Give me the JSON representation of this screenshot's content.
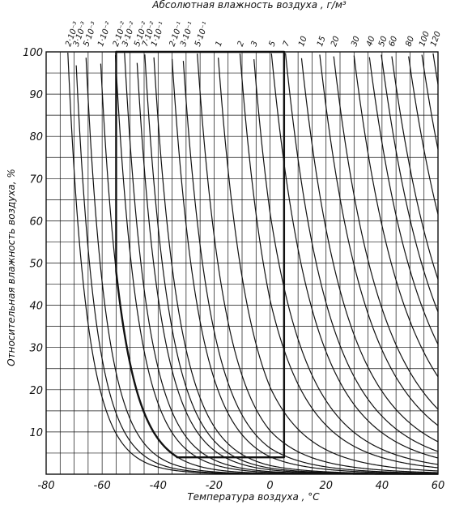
{
  "chart_data": {
    "type": "line",
    "title": "Абсолютная влажность воздуха , г/м³",
    "xlabel": "Температура воздуха , °C",
    "ylabel": "Относительная влажность воздуха, %",
    "xlim": [
      -80,
      60
    ],
    "ylim": [
      0,
      100
    ],
    "x_ticks": [
      {
        "value": -80,
        "label": "-80"
      },
      {
        "value": -60,
        "label": "-60"
      },
      {
        "value": -40,
        "label": "-40"
      },
      {
        "value": -20,
        "label": "-20"
      },
      {
        "value": 0,
        "label": "0"
      },
      {
        "value": 20,
        "label": "20"
      },
      {
        "value": 40,
        "label": "40"
      },
      {
        "value": 60,
        "label": "60"
      }
    ],
    "y_ticks": [
      {
        "value": 10,
        "label": "10"
      },
      {
        "value": 20,
        "label": "20"
      },
      {
        "value": 30,
        "label": "30"
      },
      {
        "value": 40,
        "label": "40"
      },
      {
        "value": 50,
        "label": "50"
      },
      {
        "value": 60,
        "label": "60"
      },
      {
        "value": 70,
        "label": "70"
      },
      {
        "value": 80,
        "label": "80"
      },
      {
        "value": 90,
        "label": "90"
      },
      {
        "value": 100,
        "label": "100"
      }
    ],
    "grid": true,
    "curve_labels": [
      {
        "label": "2·10⁻³",
        "value": 0.002
      },
      {
        "label": "3·10⁻³",
        "value": 0.003
      },
      {
        "label": "5·10⁻³",
        "value": 0.005
      },
      {
        "label": "1·10⁻²",
        "value": 0.01
      },
      {
        "label": "2·10⁻²",
        "value": 0.02
      },
      {
        "label": "3·10⁻²",
        "value": 0.03
      },
      {
        "label": "5·10⁻²",
        "value": 0.05
      },
      {
        "label": "7·10⁻²",
        "value": 0.07
      },
      {
        "label": "1·10⁻¹",
        "value": 0.1
      },
      {
        "label": "2·10⁻¹",
        "value": 0.2
      },
      {
        "label": "3·10⁻¹",
        "value": 0.3
      },
      {
        "label": "5·10⁻¹",
        "value": 0.5
      },
      {
        "label": "1",
        "value": 1
      },
      {
        "label": "2",
        "value": 2
      },
      {
        "label": "3",
        "value": 3
      },
      {
        "label": "5",
        "value": 5
      },
      {
        "label": "7",
        "value": 7
      },
      {
        "label": "10",
        "value": 10
      },
      {
        "label": "15",
        "value": 15
      },
      {
        "label": "20",
        "value": 20
      },
      {
        "label": "30",
        "value": 30
      },
      {
        "label": "40",
        "value": 40
      },
      {
        "label": "50",
        "value": 50
      },
      {
        "label": "60",
        "value": 60
      },
      {
        "label": "80",
        "value": 80
      },
      {
        "label": "100",
        "value": 100
      },
      {
        "label": "120",
        "value": 120
      }
    ],
    "highlighted_region": {
      "description": "bold boundary",
      "x_range": [
        -55,
        5
      ],
      "y_range": [
        4,
        100
      ],
      "boundary_curve_value": 0.01
    },
    "colors": {
      "line": "#111111",
      "background": "#ffffff"
    }
  }
}
